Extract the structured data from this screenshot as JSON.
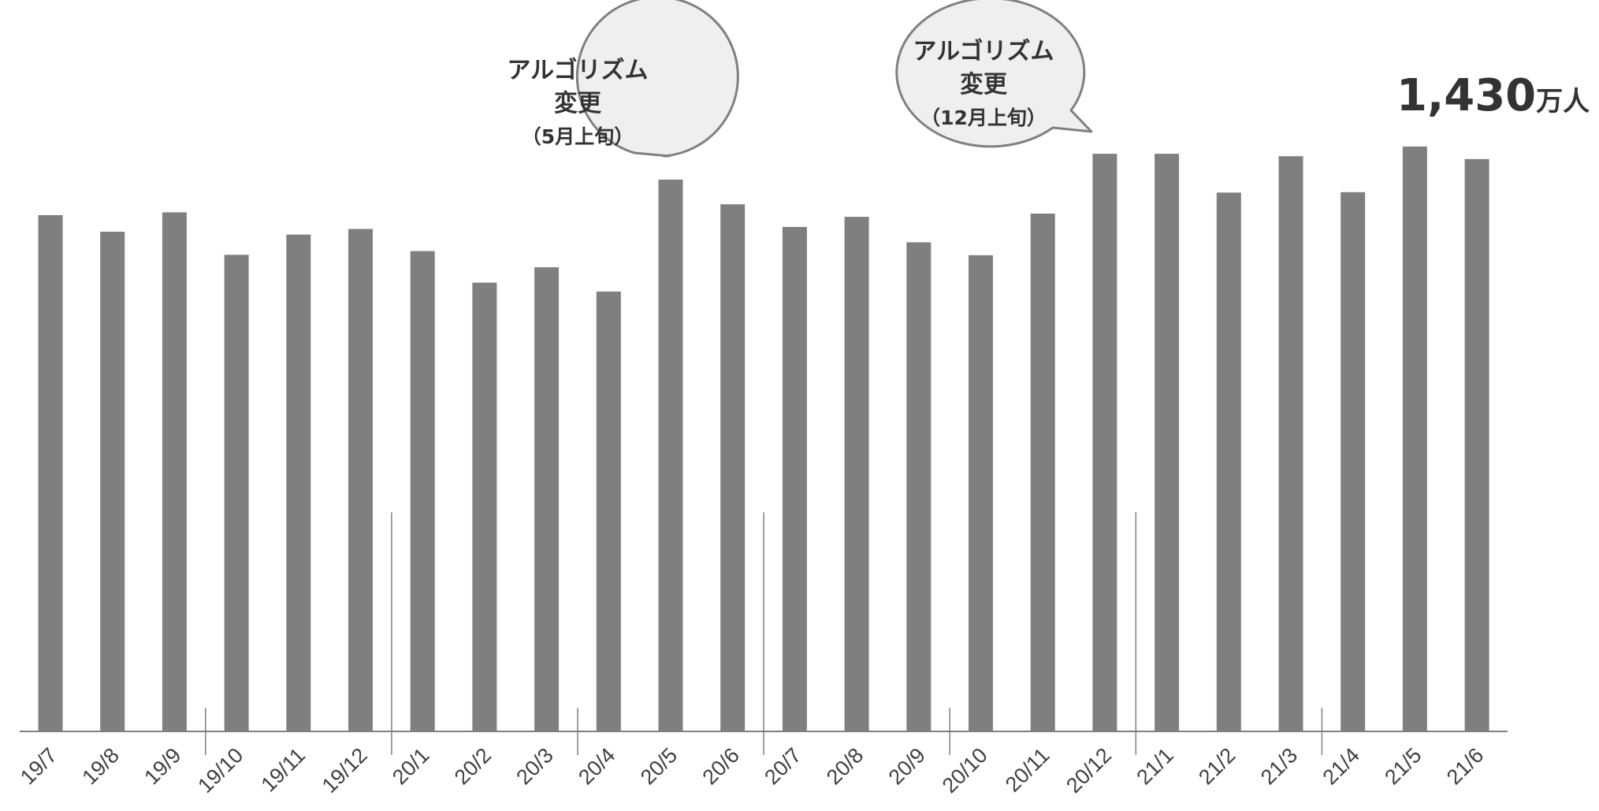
{
  "chart_data": {
    "type": "bar",
    "title": "",
    "xlabel": "",
    "ylabel": "",
    "categories": [
      "19/7",
      "19/8",
      "19/9",
      "19/10",
      "19/11",
      "19/12",
      "20/1",
      "20/2",
      "20/3",
      "20/4",
      "20/5",
      "20/6",
      "20/7",
      "20/8",
      "20/9",
      "20/10",
      "20/11",
      "20/12",
      "21/1",
      "21/2",
      "21/3",
      "21/4",
      "21/5",
      "21/6"
    ],
    "values": [
      1278,
      1237,
      1285,
      1180,
      1230,
      1244,
      1189,
      1111,
      1149,
      1089,
      1366,
      1305,
      1249,
      1274,
      1211,
      1179,
      1282,
      1430,
      1430,
      1334,
      1424,
      1335,
      1448,
      1417
    ],
    "ylim": [
      0,
      1600
    ],
    "grid": false,
    "bar_color": "#7f7f7f",
    "axis_color": "#808080",
    "annotations": [
      {
        "id": "algo-change-may",
        "lines": [
          "アルゴリズム",
          "変更",
          "（5月上旬）"
        ],
        "target_category": "20/5"
      },
      {
        "id": "algo-change-dec",
        "lines": [
          "アルゴリズム",
          "変更",
          "（12月上旬）"
        ],
        "target_category": "20/12"
      }
    ],
    "highlight": {
      "value_text": "1,430",
      "unit_text": "万人"
    }
  }
}
